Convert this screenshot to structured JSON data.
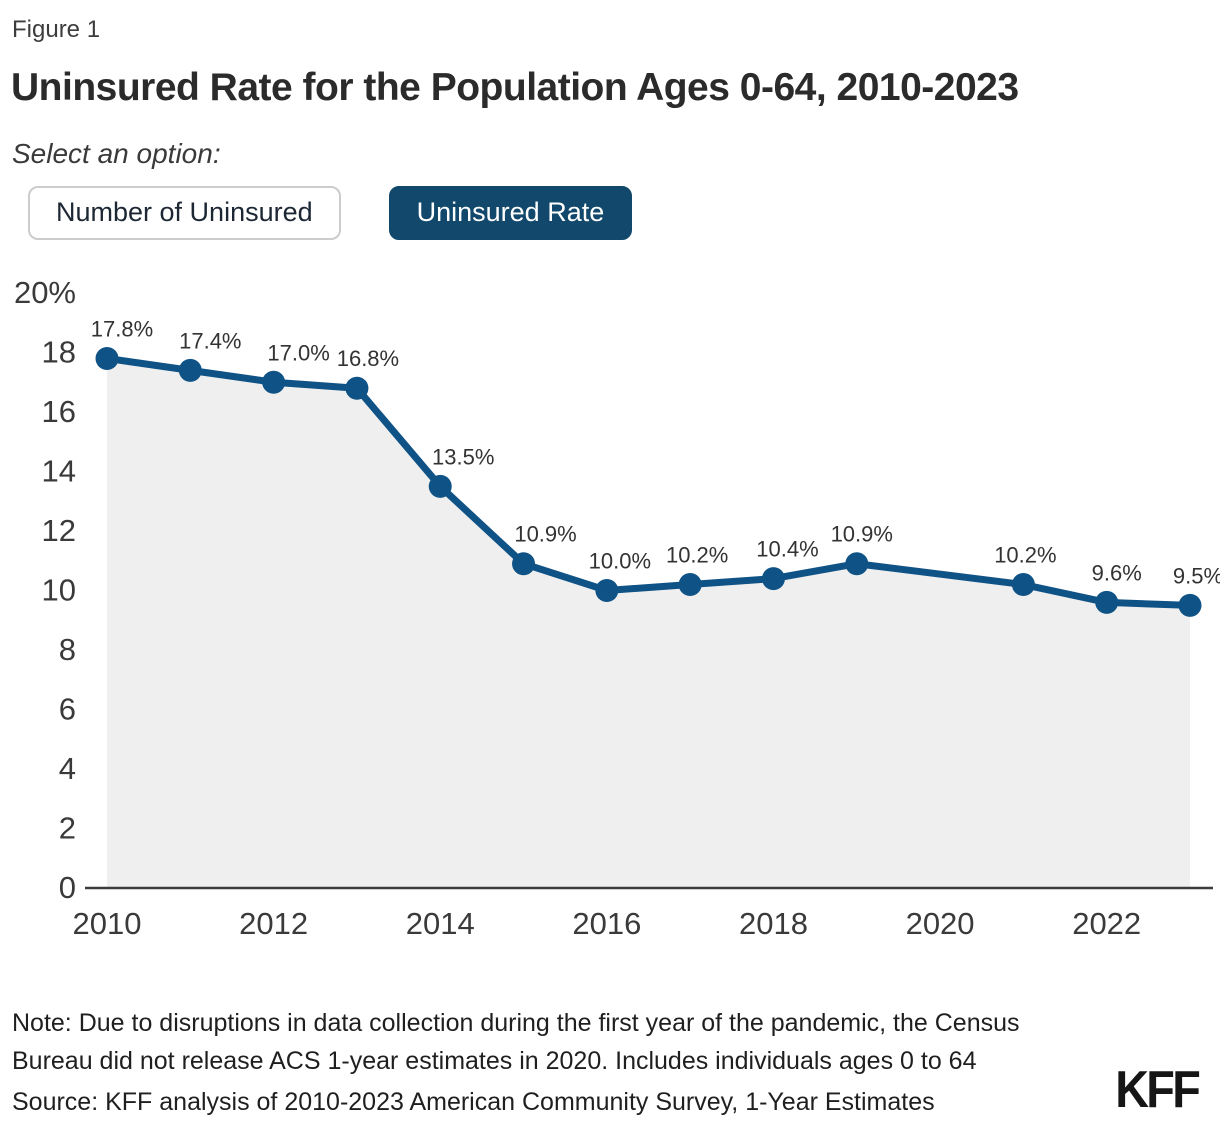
{
  "figure_label": "Figure 1",
  "title": "Uninsured Rate for the Population Ages 0-64, 2010-2023",
  "controls": {
    "prompt": "Select an option:",
    "options": [
      {
        "label": "Number of Uninsured",
        "selected": false
      },
      {
        "label": "Uninsured Rate",
        "selected": true
      }
    ]
  },
  "chart_data": {
    "type": "area",
    "title": "Uninsured Rate for the Population Ages 0-64, 2010-2023",
    "x": [
      2010,
      2011,
      2012,
      2013,
      2014,
      2015,
      2016,
      2017,
      2018,
      2019,
      2021,
      2022,
      2023
    ],
    "values": [
      17.8,
      17.4,
      17.0,
      16.8,
      13.5,
      10.9,
      10.0,
      10.2,
      10.4,
      10.9,
      10.2,
      9.6,
      9.5
    ],
    "labels": [
      "17.8%",
      "17.4%",
      "17.0%",
      "16.8%",
      "13.5%",
      "10.9%",
      "10.0%",
      "10.2%",
      "10.4%",
      "10.9%",
      "10.2%",
      "9.6%",
      "9.5%"
    ],
    "missing_years": [
      2020
    ],
    "xticks": [
      2010,
      2012,
      2014,
      2016,
      2018,
      2020,
      2022
    ],
    "yticks": [
      "20%",
      "18",
      "16",
      "14",
      "12",
      "10",
      "8",
      "6",
      "4",
      "2",
      "0"
    ],
    "ylim": [
      0,
      20
    ],
    "xlim": [
      2010,
      2023
    ],
    "grid": false,
    "legend": "none",
    "label_dx": [
      15,
      20,
      25,
      11,
      23,
      22,
      13,
      7,
      14,
      5,
      2,
      10,
      8
    ],
    "colors": {
      "line": "#0f5286",
      "marker": "#0f5286",
      "area_fill": "#efefef",
      "axis_line": "#3c3c3c",
      "tick_text": "#3a3a3a",
      "data_label_text": "#333333"
    }
  },
  "footer": {
    "note_lines": [
      "Note: Due to disruptions in data collection during the first year of the pandemic, the Census",
      "Bureau did not release ACS 1-year estimates in 2020. Includes individuals ages 0 to 64"
    ],
    "source": "Source: KFF analysis of 2010-2023 American Community Survey, 1-Year Estimates",
    "logo": "KFF"
  }
}
